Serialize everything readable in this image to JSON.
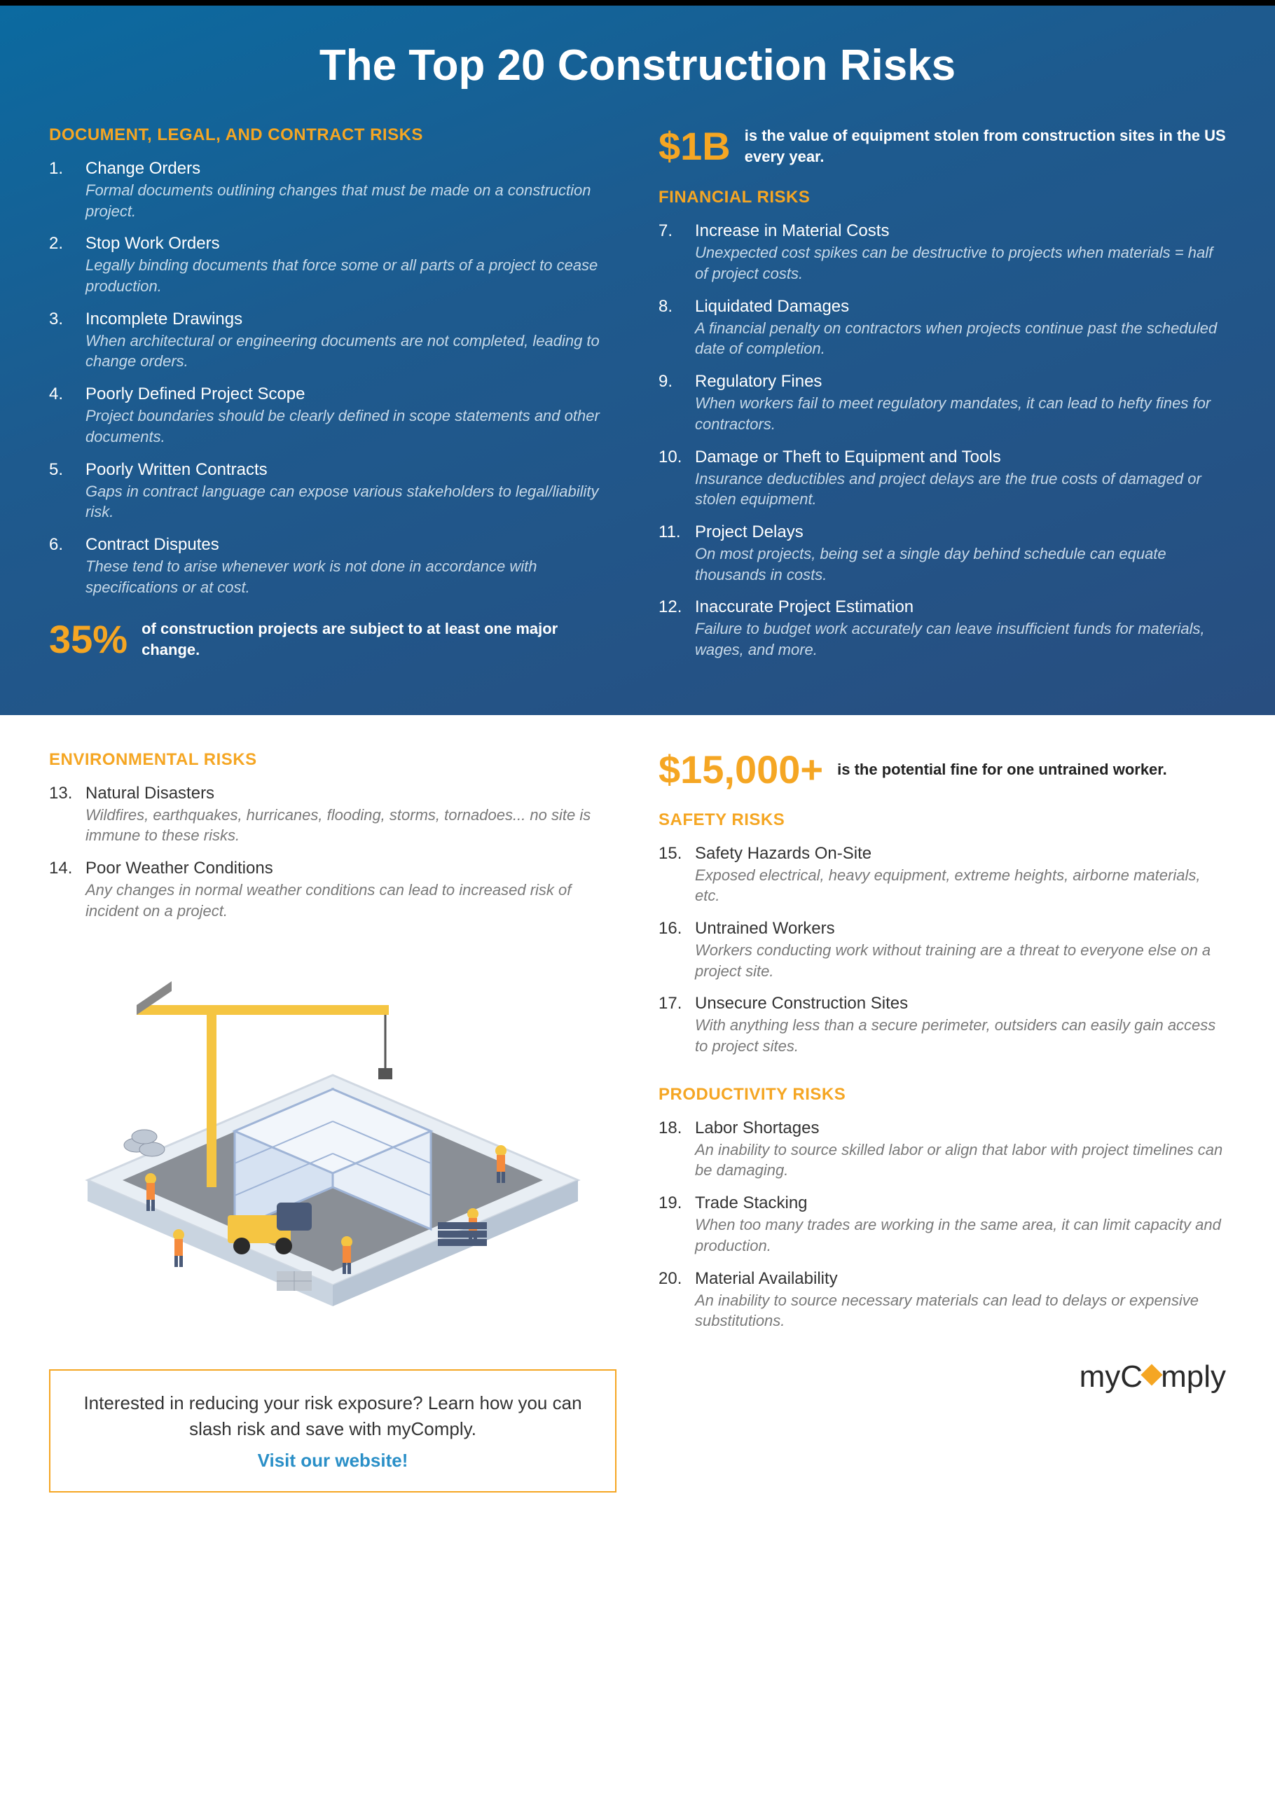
{
  "title": "The Top 20 Construction Risks",
  "colors": {
    "accent": "#f5a623",
    "link": "#2a8fc7",
    "topBg1": "#0b6aa0",
    "topBg2": "#284e80",
    "bodyText": "#333333",
    "muted": "#6b6b6b"
  },
  "sections": {
    "docLegal": {
      "heading": "DOCUMENT, LEGAL, AND CONTRACT RISKS",
      "items": [
        {
          "n": "1.",
          "t": "Change Orders",
          "d": "Formal documents outlining changes that must be made on a construction project."
        },
        {
          "n": "2.",
          "t": "Stop Work Orders",
          "d": "Legally binding documents that force some or all parts of a project to cease production."
        },
        {
          "n": "3.",
          "t": "Incomplete Drawings",
          "d": "When architectural or engineering documents are not completed, leading to change orders."
        },
        {
          "n": "4.",
          "t": "Poorly Defined Project Scope",
          "d": "Project boundaries should be clearly defined in scope statements and other documents."
        },
        {
          "n": "5.",
          "t": "Poorly Written Contracts",
          "d": "Gaps in contract language can expose various stakeholders to legal/liability risk."
        },
        {
          "n": "6.",
          "t": "Contract Disputes",
          "d": "These tend to arise whenever work is not done in accordance with specifications or at cost."
        }
      ],
      "stat": {
        "big": "35%",
        "text": "of construction projects are subject to at least one major change."
      }
    },
    "financial": {
      "stat": {
        "big": "$1B",
        "text": "is the value of equipment stolen from construction sites in the US every year."
      },
      "heading": "FINANCIAL RISKS",
      "items": [
        {
          "n": "7.",
          "t": "Increase in Material Costs",
          "d": "Unexpected cost spikes can be destructive to projects when materials = half of project costs."
        },
        {
          "n": "8.",
          "t": "Liquidated Damages",
          "d": "A financial penalty on contractors when projects continue past the scheduled date of completion."
        },
        {
          "n": "9.",
          "t": "Regulatory Fines",
          "d": "When workers fail to meet regulatory mandates, it can lead to hefty fines for contractors."
        },
        {
          "n": "10.",
          "t": "Damage or Theft to Equipment and Tools",
          "d": "Insurance deductibles and project delays are the true costs of damaged or stolen equipment."
        },
        {
          "n": "11.",
          "t": "Project Delays",
          "d": "On most projects, being set a single day behind schedule can equate thousands in costs."
        },
        {
          "n": "12.",
          "t": "Inaccurate Project Estimation",
          "d": "Failure to budget work accurately can leave insufficient funds for materials, wages, and more."
        }
      ]
    },
    "environmental": {
      "heading": "ENVIRONMENTAL RISKS",
      "items": [
        {
          "n": "13.",
          "t": "Natural Disasters",
          "d": "Wildfires, earthquakes, hurricanes, flooding, storms, tornadoes... no site is immune to these risks."
        },
        {
          "n": "14.",
          "t": "Poor Weather Conditions",
          "d": "Any changes in normal weather conditions can lead to increased risk of incident on a project."
        }
      ]
    },
    "safety": {
      "stat": {
        "big": "$15,000+",
        "text": "is the potential fine for one untrained worker."
      },
      "heading": "SAFETY RISKS",
      "items": [
        {
          "n": "15.",
          "t": "Safety Hazards On-Site",
          "d": "Exposed electrical, heavy equipment, extreme heights, airborne materials, etc."
        },
        {
          "n": "16.",
          "t": "Untrained Workers",
          "d": "Workers conducting work without training are a threat to everyone else on a project site."
        },
        {
          "n": "17.",
          "t": "Unsecure Construction Sites",
          "d": "With anything less than a secure perimeter, outsiders can easily gain access to project sites."
        }
      ]
    },
    "productivity": {
      "heading": "PRODUCTIVITY RISKS",
      "items": [
        {
          "n": "18.",
          "t": "Labor Shortages",
          "d": "An inability to source skilled labor or align that labor with project timelines can be damaging."
        },
        {
          "n": "19.",
          "t": "Trade Stacking",
          "d": "When too many trades are working in the same area, it can limit capacity and production."
        },
        {
          "n": "20.",
          "t": "Material Availability",
          "d": "An inability to source necessary materials can lead to delays or expensive substitutions."
        }
      ]
    }
  },
  "cta": {
    "text": "Interested in reducing your risk exposure? Learn how you can slash risk and save with myComply.",
    "link": "Visit our website!"
  },
  "logo": {
    "pre": "myC",
    "post": "mply"
  }
}
